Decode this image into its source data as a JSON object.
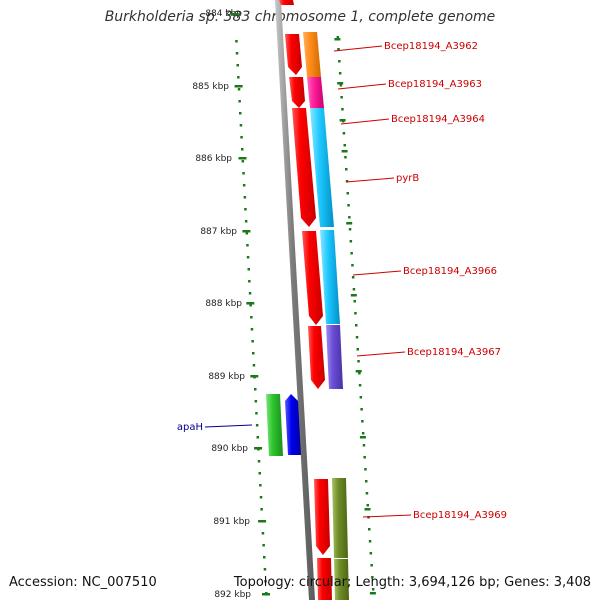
{
  "title": "Burkholderia sp. 383 chromosome 1, complete genome",
  "footer": {
    "accession": "Accession: NC_007510",
    "summary": "Topology: circular; Length: 3,694,126 bp; Genes: 3,408"
  },
  "ticks": [
    {
      "label": "884 kbp"
    },
    {
      "label": "885 kbp"
    },
    {
      "label": "886 kbp"
    },
    {
      "label": "887 kbp"
    },
    {
      "label": "888 kbp"
    },
    {
      "label": "889 kbp"
    },
    {
      "label": "890 kbp"
    },
    {
      "label": "891 kbp"
    },
    {
      "label": "892 kbp"
    }
  ],
  "genes": [
    {
      "name": "Bcep18194_A3962",
      "color": "#ff8c1a"
    },
    {
      "name": "Bcep18194_A3963",
      "color": "#ff1e9a"
    },
    {
      "name": "Bcep18194_A3964",
      "color": "#1ec8ff"
    },
    {
      "name": "pyrB",
      "color": "#1ec8ff"
    },
    {
      "name": "Bcep18194_A3966",
      "color": "#1ec8ff"
    },
    {
      "name": "Bcep18194_A3967",
      "color": "#6a4ed6"
    },
    {
      "name": "apaH",
      "color": "#2fc42f"
    },
    {
      "name": "Bcep18194_A3969",
      "color": "#6e8c28"
    }
  ],
  "colors": {
    "cds": "#ff0000",
    "backbone": "#808080",
    "tick": "#1a7a1a",
    "label_red": "#cc0000",
    "label_blue": "#00008b",
    "reverse_gene": "#0000ee"
  }
}
